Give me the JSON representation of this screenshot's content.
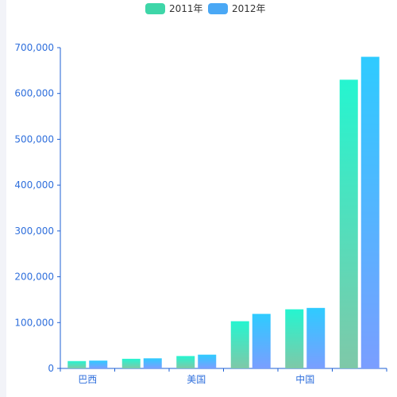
{
  "chart_data": {
    "type": "bar",
    "categories": [
      "巴西",
      "",
      "美国",
      "",
      "中国",
      ""
    ],
    "series": [
      {
        "name": "2011年",
        "values": [
          16000,
          21000,
          27000,
          103000,
          129000,
          630000
        ]
      },
      {
        "name": "2012年",
        "values": [
          17000,
          22000,
          30000,
          119000,
          132000,
          680000
        ]
      }
    ],
    "y_ticks": [
      "0",
      "100,000",
      "200,000",
      "300,000",
      "400,000",
      "500,000",
      "600,000",
      "700,000"
    ],
    "ylim": [
      0,
      700000
    ],
    "legend_position": "top-center",
    "grid": false,
    "colors": {
      "axis": "#1d5fd4",
      "tick_label": "#2f6fdc",
      "series_2011_top": "#25f5d0",
      "series_2011_bottom": "#7fc8a8",
      "series_2012_top": "#2ecbff",
      "series_2012_bottom": "#7a9eff",
      "legend_2011": "#3ed6a8",
      "legend_2012": "#4aa8f5"
    }
  }
}
